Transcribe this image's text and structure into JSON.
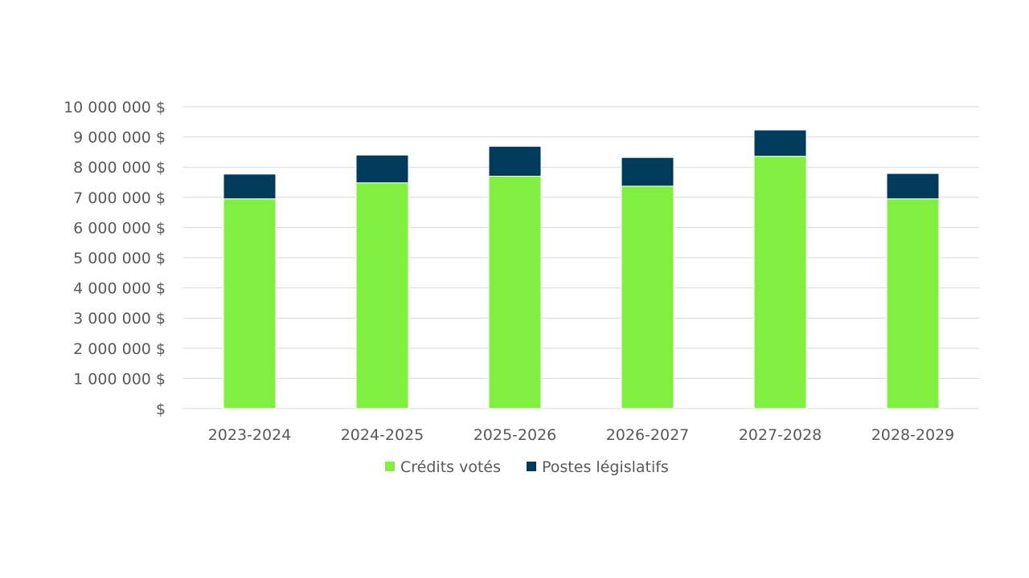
{
  "chart_data": {
    "type": "bar",
    "stacked": true,
    "title": "",
    "xlabel": "",
    "ylabel": "",
    "categories": [
      "2023-2024",
      "2024-2025",
      "2025-2026",
      "2026-2027",
      "2027-2028",
      "2028-2029"
    ],
    "series": [
      {
        "name": "Crédits votés",
        "color": "#80ef3f",
        "values": [
          6950000,
          7480000,
          7700000,
          7370000,
          8360000,
          6950000
        ]
      },
      {
        "name": "Postes législatifs",
        "color": "#003b5c",
        "values": [
          820000,
          920000,
          990000,
          950000,
          870000,
          840000
        ]
      }
    ],
    "ylim": [
      0,
      10000000
    ],
    "yticks": [
      0,
      1000000,
      2000000,
      3000000,
      4000000,
      5000000,
      6000000,
      7000000,
      8000000,
      9000000,
      10000000
    ],
    "ytick_labels": [
      "$",
      "1 000 000 $",
      "2 000 000 $",
      "3 000 000 $",
      "4 000 000 $",
      "5 000 000 $",
      "6 000 000 $",
      "7 000 000 $",
      "8 000 000 $",
      "9 000 000 $",
      "10 000 000 $"
    ],
    "grid": true,
    "gridline_color": "#d9d9d9",
    "legend_position": "bottom"
  }
}
